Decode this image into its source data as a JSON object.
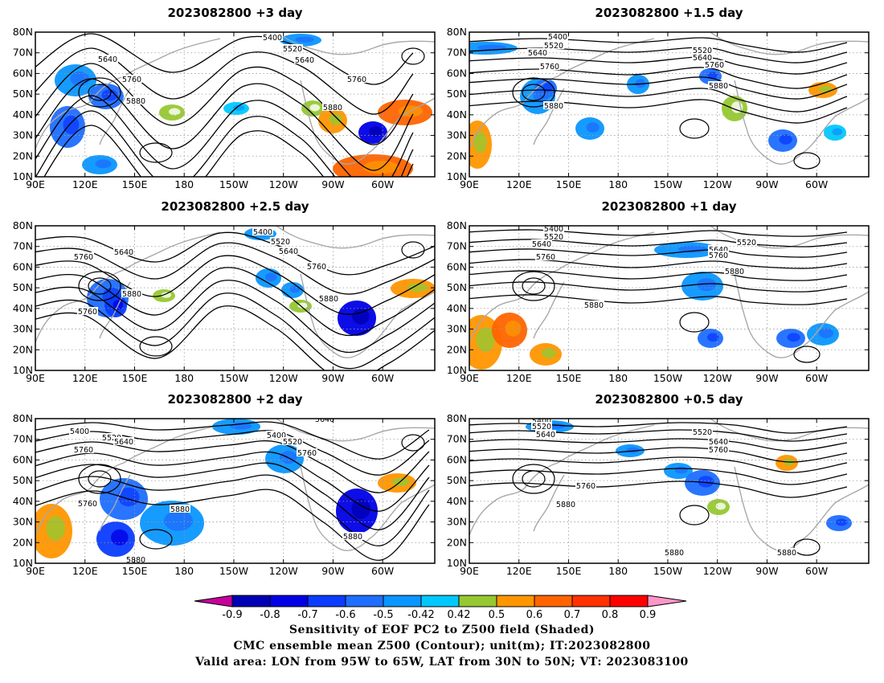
{
  "panels": [
    {
      "title": "2023082800  +3 day",
      "labels": [
        "5400",
        "5520",
        "5640",
        "5640",
        "5760",
        "5760",
        "5880",
        "5880"
      ]
    },
    {
      "title": "2023082800  +1.5 day",
      "labels": [
        "5400",
        "5520",
        "5640",
        "5520",
        "5640",
        "5760",
        "5760",
        "5880",
        "5880"
      ]
    },
    {
      "title": "2023082800  +2.5 day",
      "labels": [
        "5400",
        "5520",
        "5640",
        "5640",
        "5760",
        "5760",
        "5760",
        "5880",
        "5880"
      ]
    },
    {
      "title": "2023082800  +1 day",
      "labels": [
        "5400",
        "5520",
        "5640",
        "5520",
        "5640",
        "5760",
        "5760",
        "5880",
        "5880"
      ]
    },
    {
      "title": "2023082800  +2 day",
      "labels": [
        "5400",
        "5520",
        "5640",
        "5400",
        "5520",
        "5640",
        "5760",
        "5760",
        "5760",
        "5880",
        "5880",
        "5880"
      ]
    },
    {
      "title": "2023082800  +0.5 day",
      "labels": [
        "5400",
        "5520",
        "5640",
        "5520",
        "5640",
        "5760",
        "5760",
        "5880",
        "5880",
        "5880"
      ]
    }
  ],
  "lat_ticks": [
    "80N",
    "70N",
    "60N",
    "50N",
    "40N",
    "30N",
    "20N",
    "10N"
  ],
  "lon_ticks": [
    "90E",
    "120E",
    "150E",
    "180",
    "150W",
    "120W",
    "90W",
    "60W"
  ],
  "colorbar": {
    "labels": [
      "-0.9",
      "-0.8",
      "-0.7",
      "-0.6",
      "-0.5",
      "-0.42",
      "0.42",
      "0.5",
      "0.6",
      "0.7",
      "0.8",
      "0.9"
    ],
    "colors": [
      "#0000b4",
      "#0000e6",
      "#0a3cff",
      "#1e6eff",
      "#0a96ff",
      "#00c8ff",
      "#ffffff",
      "#96c832",
      "#ff9600",
      "#ff6400",
      "#ff3200",
      "#ff0000"
    ],
    "low_color": "#c8009b",
    "high_color": "#ff96c8"
  },
  "caption": {
    "line1": "Sensitivity of EOF PC2 to Z500 field (Shaded)",
    "line2": "CMC ensemble mean Z500 (Contour); unit(m); IT:2023082800",
    "line3": "Valid area: LON from 95W to 65W, LAT from 30N to 50N; VT: 2023083100"
  }
}
